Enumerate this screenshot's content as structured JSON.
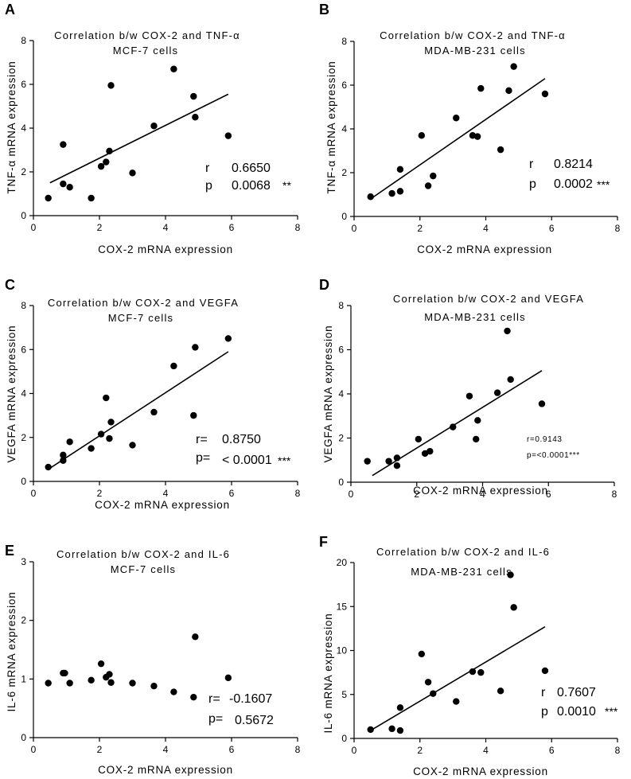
{
  "colors": {
    "ink": "#000000",
    "background": "#ffffff"
  },
  "chart_data": [
    {
      "panel": "A",
      "type": "scatter",
      "title": "Correlation b/w COX-2 and TNF-α",
      "subtitle": "MCF-7 cells",
      "xlabel": "COX-2 mRNA expression",
      "ylabel": "TNF-α mRNA expression",
      "xlim": [
        0,
        8
      ],
      "ylim": [
        0,
        8
      ],
      "xticks": [
        "0",
        "2",
        "4",
        "6",
        "8"
      ],
      "yticks": [
        "0",
        "2",
        "4",
        "6",
        "8"
      ],
      "points": [
        [
          0.45,
          0.8
        ],
        [
          0.9,
          3.25
        ],
        [
          0.9,
          1.45
        ],
        [
          1.1,
          1.3
        ],
        [
          1.75,
          0.8
        ],
        [
          2.05,
          2.25
        ],
        [
          2.2,
          2.45
        ],
        [
          2.3,
          2.95
        ],
        [
          2.35,
          5.95
        ],
        [
          3.0,
          1.95
        ],
        [
          3.65,
          4.1
        ],
        [
          4.25,
          6.7
        ],
        [
          4.85,
          5.45
        ],
        [
          4.9,
          4.5
        ],
        [
          5.9,
          3.65
        ]
      ],
      "fit": [
        [
          0.5,
          1.5
        ],
        [
          5.9,
          5.55
        ]
      ],
      "r_label": "r",
      "r_value": "0.6650",
      "p_label": "p",
      "p_value": "0.0068",
      "sig": "**"
    },
    {
      "panel": "B",
      "type": "scatter",
      "title": "Correlation b/w COX-2 and TNF-α",
      "subtitle": "MDA-MB-231 cells",
      "xlabel": "COX-2 mRNA expression",
      "ylabel": "TNF-α mRNA expression",
      "xlim": [
        0,
        8
      ],
      "ylim": [
        0,
        8
      ],
      "xticks": [
        "0",
        "2",
        "4",
        "6",
        "8"
      ],
      "yticks": [
        "0",
        "2",
        "4",
        "6",
        "8"
      ],
      "points": [
        [
          0.5,
          0.9
        ],
        [
          1.15,
          1.05
        ],
        [
          1.4,
          1.15
        ],
        [
          1.4,
          2.15
        ],
        [
          2.05,
          3.7
        ],
        [
          2.25,
          1.4
        ],
        [
          2.4,
          1.85
        ],
        [
          3.1,
          4.5
        ],
        [
          3.6,
          3.7
        ],
        [
          3.75,
          3.65
        ],
        [
          3.85,
          5.85
        ],
        [
          4.45,
          3.05
        ],
        [
          4.7,
          5.75
        ],
        [
          4.85,
          6.85
        ],
        [
          5.8,
          5.6
        ]
      ],
      "fit": [
        [
          0.5,
          0.8
        ],
        [
          5.8,
          6.3
        ]
      ],
      "r_label": "r",
      "r_value": "0.8214",
      "p_label": "p",
      "p_value": "0.0002",
      "sig": "***"
    },
    {
      "panel": "C",
      "type": "scatter",
      "title": "Correlation b/w COX-2 and VEGFA",
      "subtitle": "MCF-7 cells",
      "xlabel": "COX-2 mRNA expression",
      "ylabel": "VEGFA mRNA expression",
      "xlim": [
        0,
        8
      ],
      "ylim": [
        0,
        8
      ],
      "xticks": [
        "0",
        "2",
        "4",
        "6",
        "8"
      ],
      "yticks": [
        "0",
        "2",
        "4",
        "6",
        "8"
      ],
      "points": [
        [
          0.45,
          0.65
        ],
        [
          0.9,
          0.95
        ],
        [
          0.9,
          1.2
        ],
        [
          1.1,
          1.8
        ],
        [
          1.75,
          1.5
        ],
        [
          2.05,
          2.15
        ],
        [
          2.2,
          3.8
        ],
        [
          2.3,
          1.95
        ],
        [
          2.35,
          2.7
        ],
        [
          3.0,
          1.65
        ],
        [
          3.65,
          3.15
        ],
        [
          4.25,
          5.25
        ],
        [
          4.85,
          3.0
        ],
        [
          4.9,
          6.1
        ],
        [
          5.9,
          6.5
        ]
      ],
      "fit": [
        [
          0.5,
          0.6
        ],
        [
          5.9,
          5.9
        ]
      ],
      "r_label": "r=",
      "r_value": "0.8750",
      "p_label": "p=",
      "p_value": "< 0.0001",
      "sig": "***"
    },
    {
      "panel": "D",
      "type": "scatter",
      "title": "Correlation b/w COX-2 and VEGFA",
      "subtitle": "MDA-MB-231 cells",
      "xlabel": "COX-2 mRNA expression",
      "ylabel": "VEGFA mRNA expression",
      "xlim": [
        0,
        8
      ],
      "ylim": [
        0,
        8
      ],
      "xticks": [
        "0",
        "2",
        "4",
        "6",
        "8"
      ],
      "yticks": [
        "0",
        "2",
        "4",
        "6",
        "8"
      ],
      "points": [
        [
          0.5,
          0.95
        ],
        [
          1.15,
          0.95
        ],
        [
          1.4,
          1.1
        ],
        [
          1.4,
          0.75
        ],
        [
          2.05,
          1.95
        ],
        [
          2.25,
          1.3
        ],
        [
          2.4,
          1.4
        ],
        [
          3.1,
          2.5
        ],
        [
          3.6,
          3.9
        ],
        [
          3.8,
          1.95
        ],
        [
          3.85,
          2.8
        ],
        [
          4.45,
          4.05
        ],
        [
          4.75,
          6.85
        ],
        [
          4.85,
          4.65
        ],
        [
          5.8,
          3.55
        ]
      ],
      "fit": [
        [
          0.65,
          0.3
        ],
        [
          5.8,
          5.05
        ]
      ],
      "stat_text_r": "r=0.9143",
      "stat_text_p": "p=<0.0001***"
    },
    {
      "panel": "E",
      "type": "scatter",
      "title": "Correlation b/w COX-2 and IL-6",
      "subtitle": "MCF-7 cells",
      "xlabel": "COX-2 mRNA expression",
      "ylabel": "IL-6 mRNA expression",
      "xlim": [
        0,
        8
      ],
      "ylim": [
        0,
        3
      ],
      "xticks": [
        "0",
        "2",
        "4",
        "6",
        "8"
      ],
      "yticks": [
        "0",
        "1",
        "2",
        "3"
      ],
      "points": [
        [
          0.45,
          0.93
        ],
        [
          0.9,
          1.1
        ],
        [
          0.95,
          1.1
        ],
        [
          1.1,
          0.93
        ],
        [
          1.75,
          0.98
        ],
        [
          2.05,
          1.26
        ],
        [
          2.2,
          1.03
        ],
        [
          2.3,
          1.08
        ],
        [
          2.35,
          0.94
        ],
        [
          3.0,
          0.93
        ],
        [
          3.65,
          0.88
        ],
        [
          4.25,
          0.78
        ],
        [
          4.85,
          0.69
        ],
        [
          4.9,
          1.72
        ],
        [
          5.9,
          1.02
        ]
      ],
      "r_label": "r=",
      "r_value": "-0.1607",
      "p_label": "p=",
      "p_value": "0.5672"
    },
    {
      "panel": "F",
      "type": "scatter",
      "title": "Correlation b/w COX-2 and IL-6",
      "subtitle": "MDA-MB-231 cells",
      "xlabel": "COX-2 mRNA expression",
      "ylabel": "IL-6 mRNA expression",
      "xlim": [
        0,
        8
      ],
      "ylim": [
        0,
        20
      ],
      "xticks": [
        "0",
        "2",
        "4",
        "6",
        "8"
      ],
      "yticks": [
        "0",
        "5",
        "10",
        "15",
        "20"
      ],
      "points": [
        [
          0.5,
          1.0
        ],
        [
          1.15,
          1.1
        ],
        [
          1.4,
          3.5
        ],
        [
          1.4,
          0.9
        ],
        [
          2.05,
          9.6
        ],
        [
          2.25,
          6.4
        ],
        [
          2.4,
          5.1
        ],
        [
          3.1,
          4.2
        ],
        [
          3.6,
          7.6
        ],
        [
          3.85,
          7.5
        ],
        [
          4.45,
          5.4
        ],
        [
          4.75,
          18.6
        ],
        [
          4.85,
          14.9
        ],
        [
          5.8,
          7.7
        ]
      ],
      "fit": [
        [
          0.5,
          0.9
        ],
        [
          5.8,
          12.7
        ]
      ],
      "r_label": "r",
      "r_value": "0.7607",
      "p_label": "p",
      "p_value": "0.0010",
      "sig": "***"
    }
  ]
}
